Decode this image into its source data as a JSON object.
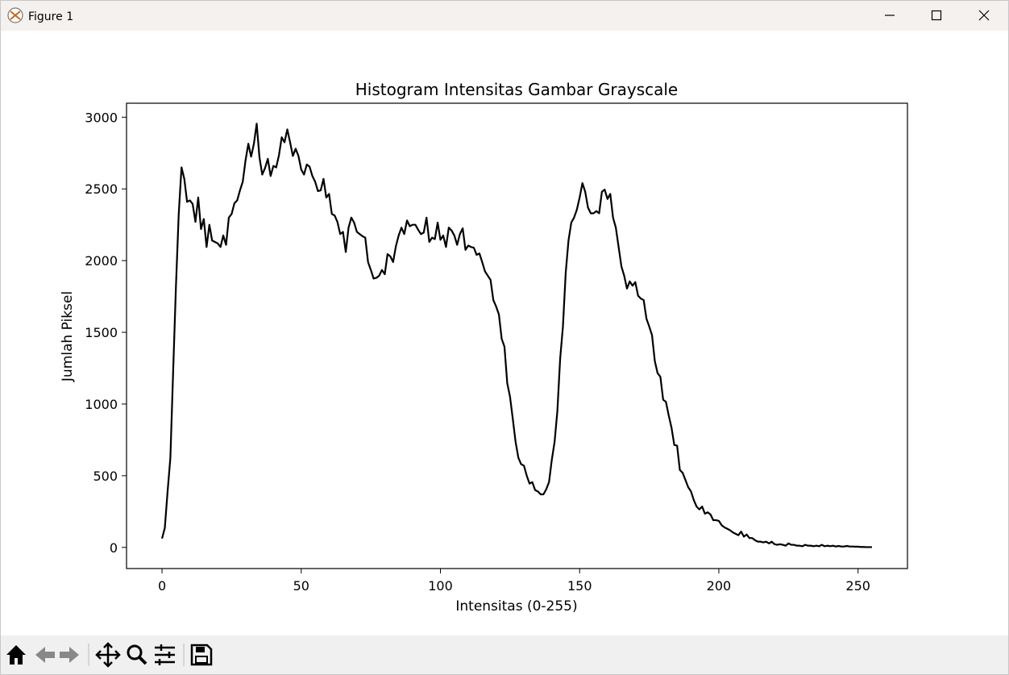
{
  "window": {
    "title": "Figure 1"
  },
  "chart_data": {
    "type": "line",
    "title": "Histogram Intensitas Gambar Grayscale",
    "x_label": "Intensitas (0-255)",
    "y_label": "Jumlah Piksel",
    "x": [
      0,
      1,
      2,
      3,
      4,
      5,
      6,
      7,
      8,
      9,
      10,
      11,
      12,
      13,
      14,
      15,
      16,
      17,
      18,
      19,
      20,
      21,
      22,
      23,
      24,
      25,
      26,
      27,
      28,
      29,
      30,
      31,
      32,
      33,
      34,
      35,
      36,
      37,
      38,
      39,
      40,
      41,
      42,
      43,
      44,
      45,
      46,
      47,
      48,
      49,
      50,
      51,
      52,
      53,
      54,
      55,
      56,
      57,
      58,
      59,
      60,
      61,
      62,
      63,
      64,
      65,
      66,
      67,
      68,
      69,
      70,
      71,
      72,
      73,
      74,
      75,
      76,
      77,
      78,
      79,
      80,
      81,
      82,
      83,
      84,
      85,
      86,
      87,
      88,
      89,
      90,
      91,
      92,
      93,
      94,
      95,
      96,
      97,
      98,
      99,
      100,
      101,
      102,
      103,
      104,
      105,
      106,
      107,
      108,
      109,
      110,
      111,
      112,
      113,
      114,
      115,
      116,
      117,
      118,
      119,
      120,
      121,
      122,
      123,
      124,
      125,
      126,
      127,
      128,
      129,
      130,
      131,
      132,
      133,
      134,
      135,
      136,
      137,
      138,
      139,
      140,
      141,
      142,
      143,
      144,
      145,
      146,
      147,
      148,
      149,
      150,
      151,
      152,
      153,
      154,
      155,
      156,
      157,
      158,
      159,
      160,
      161,
      162,
      163,
      164,
      165,
      166,
      167,
      168,
      169,
      170,
      171,
      172,
      173,
      174,
      175,
      176,
      177,
      178,
      179,
      180,
      181,
      182,
      183,
      184,
      185,
      186,
      187,
      188,
      189,
      190,
      191,
      192,
      193,
      194,
      195,
      196,
      197,
      198,
      199,
      200,
      201,
      202,
      203,
      204,
      205,
      206,
      207,
      208,
      209,
      210,
      211,
      212,
      213,
      214,
      215,
      216,
      217,
      218,
      219,
      220,
      221,
      222,
      223,
      224,
      225,
      226,
      227,
      228,
      229,
      230,
      231,
      232,
      233,
      234,
      235,
      236,
      237,
      238,
      239,
      240,
      241,
      242,
      243,
      244,
      245,
      246,
      247,
      248,
      249,
      250,
      251,
      252,
      253,
      254,
      255
    ],
    "values": [
      62,
      135,
      390,
      625,
      1230,
      1820,
      2325,
      2650,
      2570,
      2410,
      2420,
      2395,
      2270,
      2440,
      2220,
      2290,
      2095,
      2250,
      2140,
      2130,
      2120,
      2095,
      2175,
      2110,
      2300,
      2325,
      2400,
      2420,
      2490,
      2550,
      2700,
      2815,
      2725,
      2815,
      2955,
      2720,
      2600,
      2645,
      2710,
      2590,
      2660,
      2650,
      2735,
      2860,
      2825,
      2915,
      2825,
      2730,
      2780,
      2730,
      2635,
      2600,
      2670,
      2655,
      2590,
      2550,
      2485,
      2490,
      2570,
      2440,
      2465,
      2325,
      2315,
      2270,
      2185,
      2200,
      2060,
      2230,
      2300,
      2265,
      2200,
      2185,
      2170,
      2160,
      1990,
      1935,
      1875,
      1880,
      1895,
      1935,
      1905,
      2045,
      2030,
      1990,
      2100,
      2175,
      2230,
      2185,
      2280,
      2240,
      2250,
      2250,
      2215,
      2185,
      2195,
      2300,
      2130,
      2160,
      2150,
      2265,
      2145,
      2175,
      2095,
      2230,
      2210,
      2175,
      2110,
      2185,
      2225,
      2075,
      2105,
      2095,
      2090,
      2040,
      2050,
      1990,
      1925,
      1895,
      1865,
      1725,
      1680,
      1625,
      1455,
      1400,
      1145,
      1050,
      895,
      735,
      625,
      580,
      570,
      500,
      445,
      455,
      400,
      390,
      370,
      370,
      405,
      455,
      610,
      735,
      950,
      1315,
      1540,
      1915,
      2140,
      2265,
      2300,
      2355,
      2440,
      2540,
      2480,
      2370,
      2330,
      2330,
      2345,
      2330,
      2480,
      2495,
      2430,
      2465,
      2300,
      2230,
      2095,
      1960,
      1895,
      1805,
      1855,
      1825,
      1850,
      1755,
      1735,
      1725,
      1595,
      1540,
      1480,
      1300,
      1215,
      1190,
      1030,
      1015,
      920,
      835,
      715,
      710,
      540,
      520,
      470,
      420,
      390,
      330,
      285,
      265,
      285,
      235,
      245,
      230,
      190,
      190,
      185,
      155,
      140,
      130,
      120,
      105,
      95,
      85,
      110,
      75,
      90,
      65,
      65,
      50,
      40,
      40,
      35,
      40,
      28,
      40,
      22,
      18,
      22,
      18,
      12,
      28,
      18,
      18,
      12,
      12,
      8,
      18,
      12,
      12,
      8,
      12,
      8,
      18,
      8,
      12,
      8,
      12,
      6,
      10,
      6,
      6,
      10,
      6,
      6,
      5,
      5,
      3,
      3,
      2,
      2,
      2
    ],
    "color": "#000000",
    "xlim": [
      -12.75,
      267.75
    ],
    "ylim": [
      -147.5,
      3097.5
    ],
    "xticks": [
      0,
      50,
      100,
      150,
      200,
      250
    ],
    "yticks": [
      0,
      500,
      1000,
      1500,
      2000,
      2500,
      3000
    ]
  }
}
